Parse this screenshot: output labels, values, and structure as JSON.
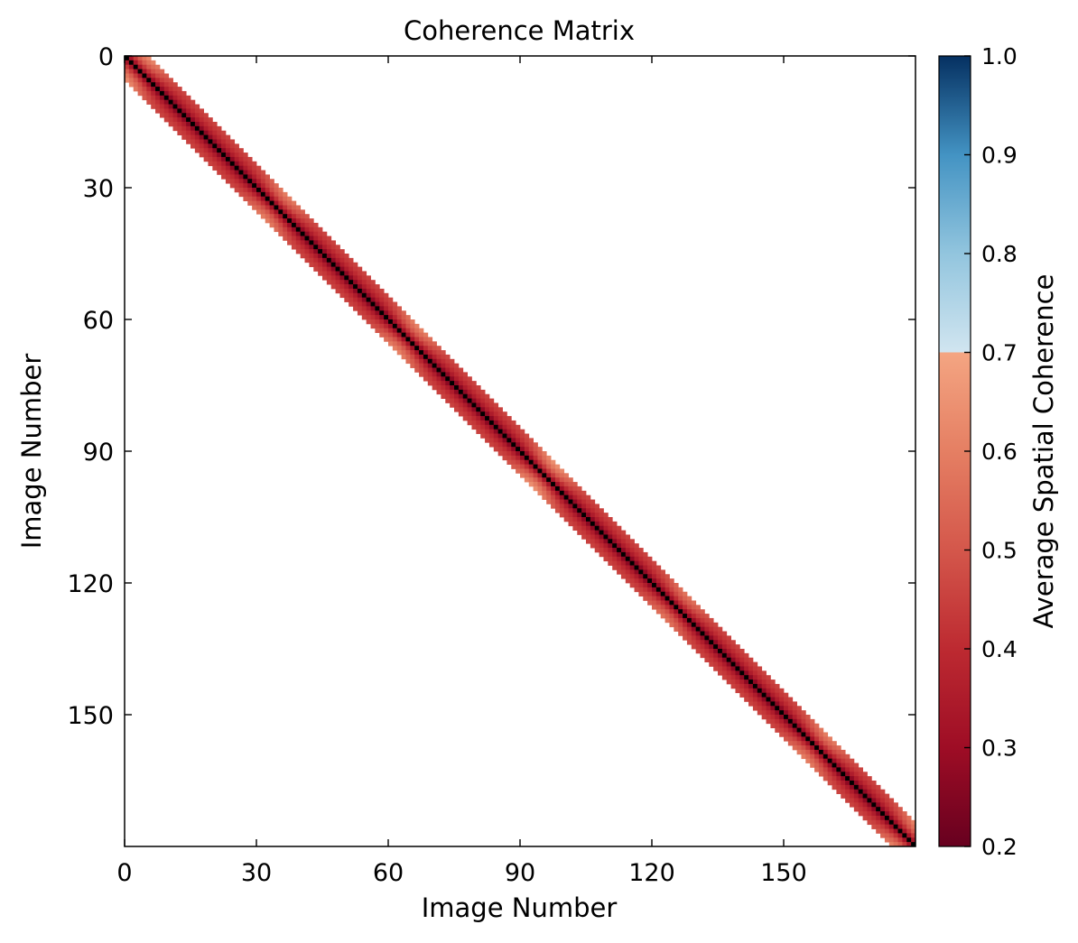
{
  "chart_data": {
    "type": "heatmap",
    "title": "Coherence Matrix",
    "xlabel": "Image Number",
    "ylabel": "Image Number",
    "matrix_size": 180,
    "band_halfwidth": 5,
    "xlim": [
      0,
      180
    ],
    "ylim": [
      180,
      0
    ],
    "x_ticks": [
      0,
      30,
      60,
      90,
      120,
      150
    ],
    "y_ticks": [
      0,
      30,
      60,
      90,
      120,
      150
    ],
    "diagonal_value": 1.0,
    "band_profile": [
      {
        "offset": 1,
        "value": 0.27
      },
      {
        "offset": 2,
        "value": 0.35
      },
      {
        "offset": 3,
        "value": 0.4
      },
      {
        "offset": 4,
        "value": 0.43
      },
      {
        "offset": 5,
        "value": 0.45
      }
    ],
    "highlight_regions": [
      {
        "center": 2,
        "boost": 0.15
      },
      {
        "center": 34,
        "boost": 0.12
      },
      {
        "center": 64,
        "boost": 0.13
      },
      {
        "center": 95,
        "boost": 0.16
      },
      {
        "center": 125,
        "boost": 0.1
      },
      {
        "center": 157,
        "boost": 0.12
      },
      {
        "center": 178,
        "boost": 0.14
      }
    ],
    "colorbar": {
      "label": "Average Spatial Coherence",
      "min": 0.2,
      "max": 1.0,
      "ticks": [
        "0.2",
        "0.3",
        "0.4",
        "0.5",
        "0.6",
        "0.7",
        "0.8",
        "0.9",
        "1.0"
      ],
      "colors": [
        {
          "value": 0.2,
          "color": "#67001f"
        },
        {
          "value": 0.3,
          "color": "#9e0d25"
        },
        {
          "value": 0.4,
          "color": "#bd2a31"
        },
        {
          "value": 0.5,
          "color": "#d4574b"
        },
        {
          "value": 0.6,
          "color": "#e57f63"
        },
        {
          "value": 0.7,
          "color": "#f4a582"
        },
        {
          "value": 0.7001,
          "color": "#d1e5f0"
        },
        {
          "value": 0.8,
          "color": "#92c5de"
        },
        {
          "value": 0.9,
          "color": "#4393c3"
        },
        {
          "value": 1.0,
          "color": "#053061"
        }
      ]
    }
  }
}
